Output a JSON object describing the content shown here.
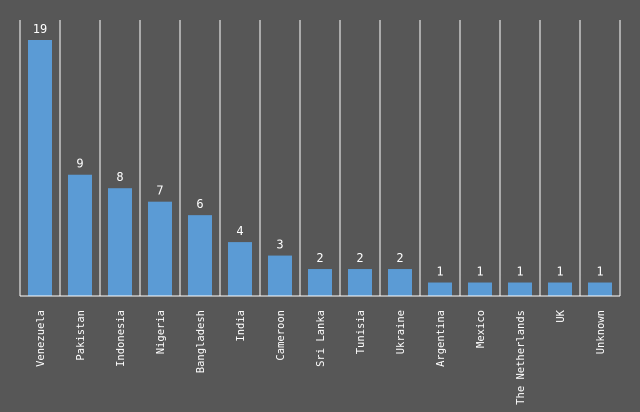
{
  "chart_data": {
    "type": "bar",
    "title": "",
    "xlabel": "",
    "ylabel": "",
    "categories": [
      "Venezuela",
      "Pakistan",
      "Indonesia",
      "Nigeria",
      "Bangladesh",
      "India",
      "Cameroon",
      "Sri Lanka",
      "Tunisia",
      "Ukraine",
      "Argentina",
      "Mexico",
      "The Netherlands",
      "UK",
      "Unknown"
    ],
    "values": [
      19,
      9,
      8,
      7,
      6,
      4,
      3,
      2,
      2,
      2,
      1,
      1,
      1,
      1,
      1
    ],
    "ylim": [
      0,
      19
    ],
    "grid": "vertical",
    "legend": "none",
    "data_labels": true,
    "colors": {
      "background": "#575757",
      "bar": "#5b9bd5",
      "grid": "#ffffff",
      "text": "#ffffff"
    }
  }
}
